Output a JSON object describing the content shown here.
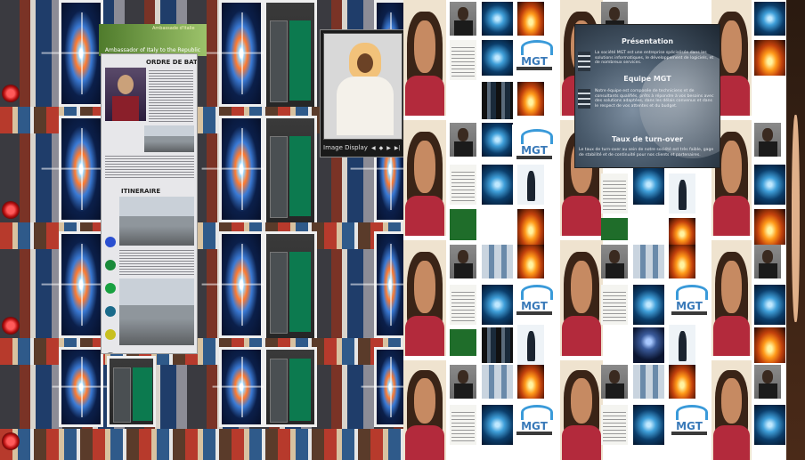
{
  "left_collage": {
    "document": {
      "banner_title": "Ambassador of Italy to the Republic",
      "banner_subtitle": "Ambassade d'Italie",
      "section_1": "ORDRE DE BATAILLE",
      "section_2": "ITINERAIRE"
    },
    "video_player": {
      "label": "Image Display",
      "controls": [
        "◀",
        "◆",
        "▶",
        "▶|"
      ]
    }
  },
  "right_grid": {
    "logo_text": "MGT",
    "promo": {
      "heading_1": "Présentation",
      "paragraph_1": "La société MGT est une entreprise spécialisée dans les solutions informatiques, le développement de logiciels, et de nombreux services.",
      "heading_2": "Equipe MGT",
      "paragraph_2": "Notre équipe est composée de techniciens et de consultants qualifiés, prêts à répondre à vos besoins avec des solutions adaptées, dans les délais convenus et dans le respect de vos attentes et du budget.",
      "heading_3": "Taux de turn-over",
      "paragraph_3": "Le taux de turn-over au sein de notre société est très faible, gage de stabilité et de continuité pour nos clients et partenaires."
    }
  }
}
